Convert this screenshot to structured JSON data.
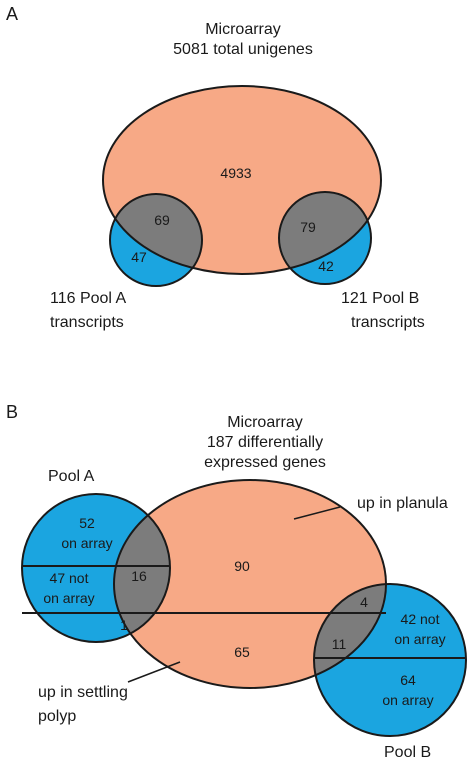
{
  "colors": {
    "array_fill": "#f7a986",
    "pool_fill": "#1ba5e0",
    "overlap_fill": "#7c7c7c",
    "stroke": "#1a1a1a"
  },
  "panel_a": {
    "label": "A",
    "title_line1": "Microarray",
    "title_line2": "5081 total unigenes",
    "array_only": "4933",
    "pool_a_overlap": "69",
    "pool_a_only": "47",
    "pool_b_overlap": "79",
    "pool_b_only": "42",
    "pool_a_label_line1": "116 Pool A",
    "pool_a_label_line2": "transcripts",
    "pool_b_label_line1": "121 Pool B",
    "pool_b_label_line2": "transcripts"
  },
  "panel_b": {
    "label": "B",
    "title_line1": "Microarray",
    "title_line2": "187 differentially",
    "title_line3": "expressed genes",
    "pool_a_name": "Pool A",
    "pool_b_name": "Pool B",
    "up_planula_label": "up in planula",
    "up_settling_line1": "up in settling",
    "up_settling_line2": "polyp",
    "planula_only": "90",
    "polyp_only": "65",
    "pool_a_on_array_count": "52",
    "pool_a_on_array_text": "on array",
    "pool_a_not_on_array_line1": "47 not",
    "pool_a_not_on_array_line2": "on array",
    "pool_a_planula_overlap": "16",
    "pool_a_polyp_overlap": "1",
    "pool_b_planula_overlap": "4",
    "pool_b_polyp_overlap": "11",
    "pool_b_not_on_array_line1": "42 not",
    "pool_b_not_on_array_line2": "on array",
    "pool_b_on_array_count": "64",
    "pool_b_on_array_text": "on array"
  }
}
